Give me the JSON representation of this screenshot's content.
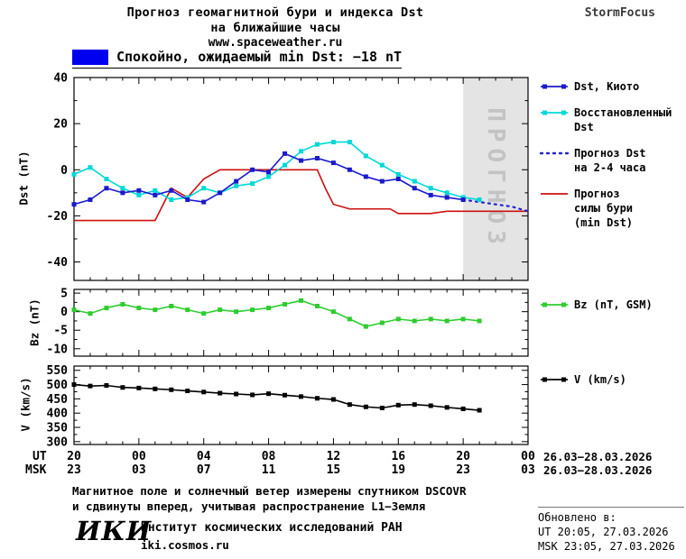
{
  "header": {
    "title_line1": "Прогноз геомагнитной бури и индекса Dst",
    "title_line2": "на ближайшие часы",
    "site": "www.spaceweather.ru",
    "brand": "StormFocus"
  },
  "status": {
    "swatch_color": "#0000f0",
    "text": "Спокойно, ожидаемый min Dst: −18 nT"
  },
  "axes": {
    "ut_label": "UT",
    "msk_label": "MSK",
    "ut_ticks": [
      "20",
      "00",
      "04",
      "08",
      "12",
      "16",
      "20",
      "00"
    ],
    "msk_ticks": [
      "23",
      "03",
      "07",
      "11",
      "15",
      "19",
      "23",
      "03"
    ],
    "ut_date": "26.03−28.03.2026",
    "msk_date": "26.03−28.03.2026"
  },
  "chart_data": [
    {
      "id": "dst",
      "type": "line",
      "ylabel": "Dst (nT)",
      "ylim": [
        -48,
        40
      ],
      "yticks": [
        40,
        20,
        0,
        -20,
        -40
      ],
      "yminor": [
        30,
        10,
        -10,
        -30
      ],
      "xlim": [
        0,
        28
      ],
      "xticks_hours": [
        0,
        4,
        8,
        12,
        16,
        20,
        24,
        28
      ],
      "forecast_band": {
        "from": 24,
        "to": 28,
        "label": "ПРОГНОЗ"
      },
      "series": [
        {
          "id": "kyoto",
          "name": "Dst, Киото",
          "color": "#1a1acd",
          "markers": true,
          "dash": null,
          "x": [
            0,
            1,
            2,
            3,
            4,
            5,
            6,
            7,
            8,
            9,
            10,
            11,
            12,
            13,
            14,
            15,
            16,
            17,
            18,
            19,
            20,
            21,
            22,
            23,
            24
          ],
          "y": [
            -15,
            -13,
            -8,
            -10,
            -9,
            -11,
            -9,
            -13,
            -14,
            -10,
            -5,
            0,
            -1,
            7,
            4,
            5,
            3,
            0,
            -3,
            -5,
            -4,
            -8,
            -11,
            -12,
            -13
          ]
        },
        {
          "id": "restored",
          "name": "Восстановленный Dst",
          "color": "#00d8d8",
          "markers": true,
          "dash": null,
          "x": [
            0,
            1,
            2,
            3,
            4,
            5,
            6,
            7,
            8,
            9,
            10,
            11,
            12,
            13,
            14,
            15,
            16,
            17,
            18,
            19,
            20,
            21,
            22,
            23,
            24,
            25
          ],
          "y": [
            -2,
            1,
            -4,
            -8,
            -11,
            -9,
            -13,
            -12,
            -8,
            -10,
            -7,
            -6,
            -3,
            2,
            8,
            11,
            12,
            12,
            6,
            2,
            -2,
            -5,
            -8,
            -10,
            -12,
            -13
          ]
        },
        {
          "id": "forecast_2_4h",
          "name": "Прогноз Dst на 2-4 часа",
          "color": "#2222cc",
          "markers": false,
          "dash": "2 5",
          "x": [
            24,
            25,
            26,
            27,
            28
          ],
          "y": [
            -13,
            -14,
            -15,
            -16,
            -18
          ]
        },
        {
          "id": "storm_forecast",
          "name": "Прогноз силы бури (min Dst)",
          "color": "#cd1111",
          "markers": false,
          "dash": null,
          "x": [
            0,
            5,
            6,
            7,
            8,
            9,
            15,
            15.5,
            16,
            17,
            19.5,
            20,
            22,
            23,
            28
          ],
          "y": [
            -22,
            -22,
            -8,
            -12,
            -4,
            0,
            0,
            -8,
            -15,
            -17,
            -17,
            -19,
            -19,
            -18,
            -18
          ]
        }
      ]
    },
    {
      "id": "bz",
      "type": "line",
      "ylabel": "Bz (nT)",
      "ylim": [
        -12,
        6
      ],
      "yticks": [
        5,
        0,
        -5,
        -10
      ],
      "yminor": [
        2.5,
        -2.5,
        -7.5
      ],
      "xlim": [
        0,
        28
      ],
      "xticks_hours": [
        0,
        4,
        8,
        12,
        16,
        20,
        24,
        28
      ],
      "series": [
        {
          "id": "bz_gsm",
          "name": "Bz (nT, GSM)",
          "color": "#2ecc2e",
          "markers": true,
          "dash": null,
          "x": [
            0,
            1,
            2,
            3,
            4,
            5,
            6,
            7,
            8,
            9,
            10,
            11,
            12,
            13,
            14,
            15,
            16,
            17,
            18,
            19,
            20,
            21,
            22,
            23,
            24,
            25
          ],
          "y": [
            0.5,
            -0.5,
            1,
            2,
            1,
            0.5,
            1.5,
            0.5,
            -0.5,
            0.5,
            0,
            0.5,
            1,
            2,
            3,
            1.5,
            0,
            -2,
            -4,
            -3,
            -2,
            -2.5,
            -2,
            -2.5,
            -2,
            -2.5
          ]
        }
      ]
    },
    {
      "id": "v",
      "type": "line",
      "ylabel": "V (km/s)",
      "ylim": [
        290,
        565
      ],
      "yticks": [
        550,
        500,
        450,
        400,
        350,
        300
      ],
      "yminor": [
        525,
        475,
        425,
        375,
        325
      ],
      "xlim": [
        0,
        28
      ],
      "xticks_hours": [
        0,
        4,
        8,
        12,
        16,
        20,
        24,
        28
      ],
      "series": [
        {
          "id": "solar_wind_v",
          "name": "V (km/s)",
          "color": "#000000",
          "markers": true,
          "dash": null,
          "x": [
            0,
            1,
            2,
            3,
            4,
            5,
            6,
            7,
            8,
            9,
            10,
            11,
            12,
            13,
            14,
            15,
            16,
            17,
            18,
            19,
            20,
            21,
            22,
            23,
            24,
            25
          ],
          "y": [
            500,
            495,
            497,
            490,
            488,
            485,
            482,
            478,
            474,
            470,
            467,
            464,
            468,
            463,
            458,
            452,
            448,
            430,
            422,
            418,
            428,
            430,
            426,
            420,
            415,
            410
          ]
        }
      ]
    }
  ],
  "legend": {
    "main": [
      {
        "lines": [
          "Dst, Киото"
        ],
        "color": "#1a1acd",
        "marker": "line-squares"
      },
      {
        "lines": [
          "Восстановленный",
          "Dst"
        ],
        "color": "#00d8d8",
        "marker": "line-squares"
      },
      {
        "lines": [
          "Прогноз Dst",
          "на 2-4 часа"
        ],
        "color": "#2222cc",
        "marker": "dotted"
      },
      {
        "lines": [
          "Прогноз",
          "силы бури",
          "(min Dst)"
        ],
        "color": "#cd1111",
        "marker": "line"
      }
    ],
    "bz": {
      "lines": [
        "Bz (nT, GSM)"
      ],
      "color": "#2ecc2e",
      "marker": "line-squares"
    },
    "v": {
      "lines": [
        "V (km/s)"
      ],
      "color": "#000000",
      "marker": "line-squares"
    }
  },
  "footer": {
    "note_line1": "Магнитное поле и солнечный ветер измерены спутником DSCOVR",
    "note_line2": "и сдвинуты вперед, учитывая распространение L1−Земля",
    "logo": "ИКИ",
    "institute": "Институт космических исследований РАН",
    "site": "iki.cosmos.ru"
  },
  "updated": {
    "title": "Обновлено в:",
    "ut": "UT  20:05, 27.03.2026",
    "msk": "MSK 23:05, 27.03.2026"
  }
}
